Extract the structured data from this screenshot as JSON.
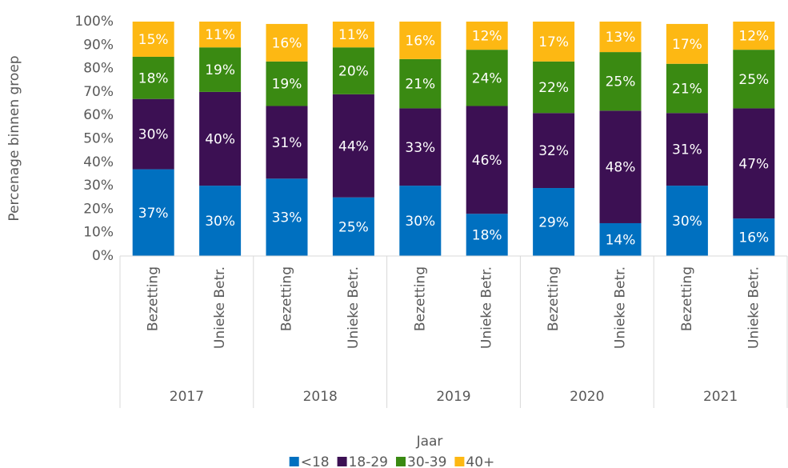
{
  "chart_data": {
    "type": "stacked_bar_100",
    "categories": [
      "Bezetting",
      "Unieke Betr.",
      "Bezetting",
      "Unieke Betr.",
      "Bezetting",
      "Unieke Betr.",
      "Bezetting",
      "Unieke Betr.",
      "Bezetting",
      "Unieke Betr."
    ],
    "groups": [
      "2017",
      "2018",
      "2019",
      "2020",
      "2021"
    ],
    "series": [
      {
        "name": "<18",
        "color": "#0070c0",
        "values": [
          37,
          30,
          33,
          25,
          30,
          18,
          29,
          14,
          30,
          16
        ],
        "value_labels": [
          "37%",
          "30%",
          "33%",
          "25%",
          "30%",
          "18%",
          "29%",
          "14%",
          "30%",
          "16%"
        ]
      },
      {
        "name": "18-29",
        "color": "#3c1053",
        "values": [
          30,
          40,
          31,
          44,
          33,
          46,
          32,
          48,
          31,
          47
        ],
        "value_labels": [
          "30%",
          "40%",
          "31%",
          "44%",
          "33%",
          "46%",
          "32%",
          "48%",
          "31%",
          "47%"
        ]
      },
      {
        "name": "30-39",
        "color": "#3a8a12",
        "values": [
          18,
          19,
          19,
          20,
          21,
          24,
          22,
          25,
          21,
          25
        ],
        "value_labels": [
          "18%",
          "19%",
          "19%",
          "20%",
          "21%",
          "24%",
          "22%",
          "25%",
          "21%",
          "25%"
        ]
      },
      {
        "name": "40+",
        "color": "#fdb813",
        "values": [
          15,
          11,
          16,
          11,
          16,
          12,
          17,
          13,
          17,
          12
        ],
        "value_labels": [
          "15%",
          "11%",
          "16%",
          "11%",
          "16%",
          "12%",
          "17%",
          "13%",
          "17%",
          "12%"
        ]
      }
    ],
    "ylabel": "Percenage binnen groep",
    "xlabel": "Jaar",
    "ylim": [
      0,
      100
    ],
    "yticks": [
      {
        "value": 0,
        "label": "0%"
      },
      {
        "value": 10,
        "label": "10%"
      },
      {
        "value": 20,
        "label": "20%"
      },
      {
        "value": 30,
        "label": "30%"
      },
      {
        "value": 40,
        "label": "40%"
      },
      {
        "value": 50,
        "label": "50%"
      },
      {
        "value": 60,
        "label": "60%"
      },
      {
        "value": 70,
        "label": "70%"
      },
      {
        "value": 80,
        "label": "80%"
      },
      {
        "value": 90,
        "label": "90%"
      },
      {
        "value": 100,
        "label": "100%"
      }
    ],
    "legend": "bottom"
  }
}
